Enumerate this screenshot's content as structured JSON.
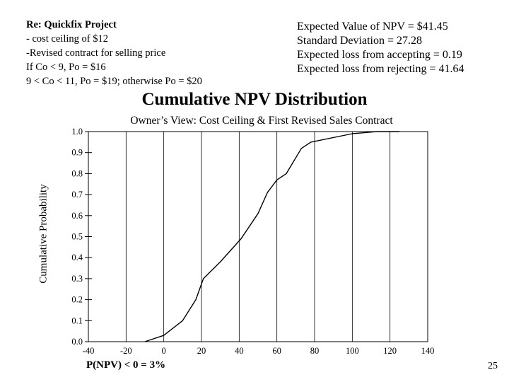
{
  "header": {
    "left": {
      "title": "Re: Quickfix Project",
      "lines": [
        "- cost ceiling of $12",
        "-Revised contract for selling price",
        "If Co < 9, Po = $16",
        "9 < Co < 11, Po = $19; otherwise Po = $20"
      ]
    },
    "right": {
      "lines": [
        "Expected Value of NPV = $41.45",
        "Standard Deviation = 27.28",
        "Expected  loss from accepting = 0.19",
        "Expected loss from rejecting = 41.64"
      ]
    }
  },
  "footnote": "P(NPV) < 0 = 3%",
  "page_number": "25",
  "chart_data": {
    "type": "line",
    "title": "Cumulative NPV Distribution",
    "subtitle": "Owner’s View:  Cost Ceiling & First Revised Sales Contract",
    "xlabel": "",
    "ylabel": "Cumulative Probability",
    "xlim": [
      -40,
      140
    ],
    "ylim": [
      0.0,
      1.0
    ],
    "x_ticks": [
      "-40",
      "-20",
      "0",
      "20",
      "40",
      "60",
      "80",
      "100",
      "120",
      "140"
    ],
    "y_ticks": [
      "0.0",
      "0.1",
      "0.2",
      "0.3",
      "0.4",
      "0.5",
      "0.6",
      "0.7",
      "0.8",
      "0.9",
      "1.0"
    ],
    "grid": {
      "vertical": true,
      "horizontal": false
    },
    "series": [
      {
        "points": [
          [
            -10,
            0.0
          ],
          [
            0,
            0.03
          ],
          [
            10,
            0.1
          ],
          [
            17,
            0.2
          ],
          [
            21,
            0.3
          ],
          [
            30,
            0.38
          ],
          [
            41,
            0.49
          ],
          [
            50,
            0.61
          ],
          [
            55,
            0.71
          ],
          [
            60,
            0.77
          ],
          [
            65,
            0.8
          ],
          [
            73,
            0.92
          ],
          [
            78,
            0.95
          ],
          [
            100,
            0.99
          ],
          [
            113,
            1.0
          ],
          [
            125,
            1.0
          ]
        ]
      }
    ]
  }
}
